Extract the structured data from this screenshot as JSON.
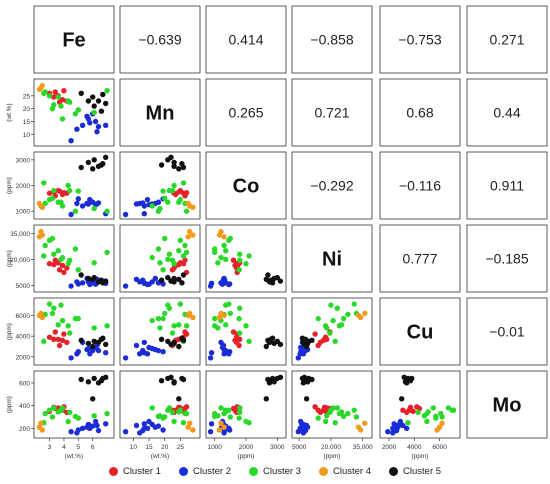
{
  "chart_data": {
    "type": "scatter",
    "variables": [
      "Fe",
      "Mn",
      "Co",
      "Ni",
      "Cu",
      "Mo"
    ],
    "correlations": [
      [
        "",
        "−0.639",
        "0.414",
        "−0.858",
        "−0.753",
        "0.271"
      ],
      [
        "",
        "",
        "0.265",
        "0.721",
        "0.68",
        "0.44"
      ],
      [
        "",
        "",
        "",
        "−0.292",
        "−0.116",
        "0.911"
      ],
      [
        "",
        "",
        "",
        "",
        "0.777",
        "−0.185"
      ],
      [
        "",
        "",
        "",
        "",
        "",
        "−0.01"
      ],
      [
        "",
        "",
        "",
        "",
        "",
        ""
      ]
    ],
    "axes": [
      {
        "name": "Fe",
        "unit": "(wt.%)",
        "range": [
          2.2,
          7.2
        ],
        "ticks": [
          3,
          4,
          5,
          6
        ]
      },
      {
        "name": "Mn",
        "unit": "(wt.%)",
        "range": [
          7,
          30
        ],
        "ticks": [
          10,
          15,
          20,
          25
        ]
      },
      {
        "name": "Co",
        "unit": "(ppm)",
        "range": [
          850,
          3150
        ],
        "ticks": [
          1000,
          2000,
          3000
        ]
      },
      {
        "name": "Ni",
        "unit": "(ppm)",
        "range": [
          3500,
          37500
        ],
        "ticks": [
          5000,
          20000,
          35000
        ],
        "tick_labels": [
          "5000",
          "20,000",
          "35,000"
        ]
      },
      {
        "name": "Cu",
        "unit": "(ppm)",
        "range": [
          1600,
          7300
        ],
        "ticks": [
          2000,
          4000,
          6000
        ]
      },
      {
        "name": "Mo",
        "unit": "(ppm)",
        "range": [
          150,
          670
        ],
        "ticks": [
          200,
          400,
          600
        ]
      }
    ],
    "clusters": [
      {
        "name": "Cluster 1",
        "color": "#e8202a",
        "points": [
          [
            3.0,
            26,
            1700,
            17500,
            3900,
            350
          ],
          [
            3.3,
            24.5,
            1750,
            17000,
            3700,
            385
          ],
          [
            3.6,
            25,
            1800,
            18000,
            3700,
            380
          ],
          [
            3.9,
            23.5,
            1650,
            16500,
            3600,
            360
          ],
          [
            4.2,
            23,
            1700,
            15000,
            3400,
            340
          ],
          [
            3.4,
            26.5,
            1600,
            19500,
            4400,
            375
          ],
          [
            4.0,
            27,
            1720,
            12500,
            4200,
            390
          ],
          [
            3.7,
            22.5,
            1780,
            14000,
            3100,
            360
          ]
        ]
      },
      {
        "name": "Cluster 2",
        "color": "#1a2cd6",
        "points": [
          [
            4.5,
            7.5,
            870,
            4600,
            1900,
            170
          ],
          [
            4.9,
            12,
            1300,
            7000,
            2300,
            160
          ],
          [
            5.3,
            13.5,
            1200,
            6500,
            3400,
            200
          ],
          [
            5.7,
            16,
            1280,
            7000,
            2800,
            235
          ],
          [
            5.8,
            14.5,
            1450,
            5500,
            2300,
            200
          ],
          [
            6.0,
            18,
            1350,
            6500,
            2600,
            220
          ],
          [
            6.2,
            15,
            1250,
            5700,
            2900,
            260
          ],
          [
            6.4,
            13,
            1320,
            8000,
            2600,
            180
          ],
          [
            5.6,
            17,
            1300,
            9000,
            2700,
            210
          ],
          [
            6.9,
            13.5,
            900,
            6200,
            2400,
            240
          ],
          [
            6.3,
            11,
            1280,
            8500,
            3100,
            225
          ],
          [
            5.0,
            19.5,
            1480,
            5800,
            2500,
            185
          ]
        ]
      },
      {
        "name": "Cluster 3",
        "color": "#29d829",
        "points": [
          [
            2.7,
            26.5,
            1300,
            28000,
            6100,
            330
          ],
          [
            3.0,
            25,
            1450,
            31000,
            7100,
            360
          ],
          [
            3.3,
            21.5,
            1800,
            23000,
            6700,
            380
          ],
          [
            3.6,
            24.5,
            1350,
            25000,
            5100,
            345
          ],
          [
            3.8,
            21,
            1350,
            20000,
            7000,
            360
          ],
          [
            4.4,
            22.5,
            1800,
            19500,
            4300,
            340
          ],
          [
            4.8,
            18,
            1000,
            26000,
            5700,
            305
          ],
          [
            5.0,
            19.5,
            1780,
            14000,
            5700,
            290
          ],
          [
            2.6,
            26,
            2100,
            22000,
            3500,
            250
          ],
          [
            3.2,
            20,
            1500,
            32000,
            6200,
            300
          ],
          [
            7.0,
            27,
            1000,
            24000,
            5000,
            330
          ],
          [
            3.9,
            16,
            1200,
            21000,
            5500,
            380
          ],
          [
            4.3,
            23,
            2000,
            17500,
            5000,
            260
          ],
          [
            6.1,
            18.5,
            1100,
            18000,
            4800,
            310
          ]
        ]
      },
      {
        "name": "Cluster 4",
        "color": "#f29a1c",
        "points": [
          [
            2.4,
            28,
            1200,
            36000,
            6200,
            245
          ],
          [
            2.5,
            29,
            1150,
            34000,
            5800,
            185
          ],
          [
            2.3,
            27.5,
            1300,
            33000,
            6000,
            210
          ]
        ]
      },
      {
        "name": "Cluster 5",
        "color": "#111111",
        "points": [
          [
            5.2,
            26,
            2700,
            11000,
            3600,
            630
          ],
          [
            5.7,
            23,
            2900,
            9000,
            3300,
            610
          ],
          [
            6.1,
            21,
            3000,
            9500,
            3500,
            640
          ],
          [
            6.6,
            19,
            2800,
            8000,
            3700,
            620
          ],
          [
            6.9,
            22,
            3100,
            7500,
            3200,
            650
          ],
          [
            6.4,
            23,
            2750,
            7000,
            3400,
            600
          ],
          [
            6.0,
            24.5,
            2650,
            8500,
            3000,
            460
          ],
          [
            6.7,
            25.5,
            2850,
            6500,
            3800,
            640
          ]
        ]
      }
    ]
  },
  "legend": [
    {
      "label": "Cluster 1",
      "color": "#e8202a"
    },
    {
      "label": "Cluster 2",
      "color": "#1a2cd6"
    },
    {
      "label": "Cluster 3",
      "color": "#29d829"
    },
    {
      "label": "Cluster 4",
      "color": "#f29a1c"
    },
    {
      "label": "Cluster 5",
      "color": "#111111"
    }
  ]
}
